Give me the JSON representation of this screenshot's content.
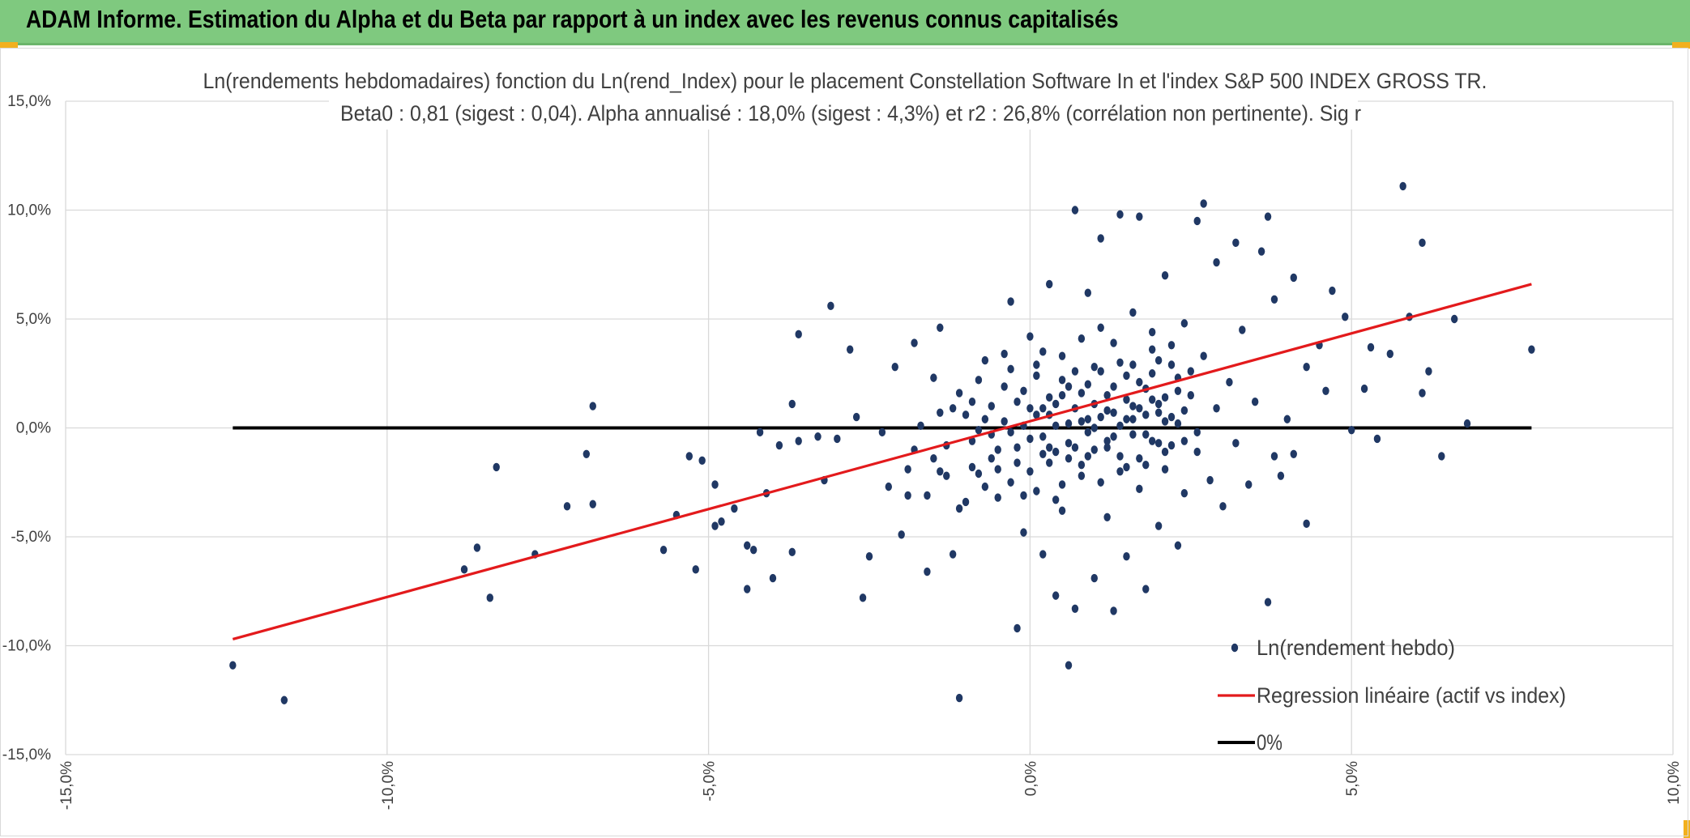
{
  "header": {
    "title": "ADAM Informe. Estimation du Alpha et du Beta par rapport à un index avec les revenus connus capitalisés"
  },
  "colors": {
    "header_bg": "#7fc97f",
    "scatter": "#203864",
    "regression": "#e31a1c",
    "zero_line": "#000000",
    "accent_corner": "#f2b01e"
  },
  "chart_data": {
    "type": "scatter",
    "title": "Ln(rendements hebdomadaires) fonction du Ln(rend_Index) pour le placement Constellation Software In et l'index S&P 500 INDEX GROSS TR.",
    "subtitle": "Beta0 : 0,81 (sigest : 0,04). Alpha annualisé : 18,0% (sigest : 4,3%) et r2 : 26,8% (corrélation non pertinente). Sig r",
    "xlim": [
      -15,
      10
    ],
    "ylim": [
      -15,
      15
    ],
    "x_ticks": [
      "-15,0%",
      "-10,0%",
      "-5,0%",
      "0,0%",
      "5,0%",
      "10,0%"
    ],
    "y_ticks": [
      "15,0%",
      "10,0%",
      "5,0%",
      "0,0%",
      "-5,0%",
      "-10,0%",
      "-15,0%"
    ],
    "x_unit": "%",
    "y_unit": "%",
    "grid": true,
    "legend_position": "bottom-right",
    "series": [
      {
        "name": "Ln(rendement hebdo)",
        "kind": "scatter",
        "points": [
          [
            -12.4,
            -10.9
          ],
          [
            -11.6,
            -12.5
          ],
          [
            -8.8,
            -6.5
          ],
          [
            -8.6,
            -5.5
          ],
          [
            -8.4,
            -7.8
          ],
          [
            -8.3,
            -1.8
          ],
          [
            -7.7,
            -5.8
          ],
          [
            -7.2,
            -3.6
          ],
          [
            -6.9,
            -1.2
          ],
          [
            -6.8,
            1.0
          ],
          [
            -6.8,
            -3.5
          ],
          [
            -5.7,
            -5.6
          ],
          [
            -5.5,
            -4.0
          ],
          [
            -5.3,
            -1.3
          ],
          [
            -5.2,
            -6.5
          ],
          [
            -5.1,
            -1.5
          ],
          [
            -4.9,
            -2.6
          ],
          [
            -4.9,
            -4.5
          ],
          [
            -4.8,
            -4.3
          ],
          [
            -4.6,
            -3.7
          ],
          [
            -4.4,
            -7.4
          ],
          [
            -4.4,
            -5.4
          ],
          [
            -4.3,
            -5.6
          ],
          [
            -4.2,
            -0.2
          ],
          [
            -4.1,
            -3.0
          ],
          [
            -4.0,
            -6.9
          ],
          [
            -3.9,
            -0.8
          ],
          [
            -3.7,
            -5.7
          ],
          [
            -3.7,
            1.1
          ],
          [
            -3.6,
            4.3
          ],
          [
            -3.6,
            -0.6
          ],
          [
            -3.3,
            -0.4
          ],
          [
            -3.2,
            -2.4
          ],
          [
            -3.1,
            5.6
          ],
          [
            -3.0,
            -0.5
          ],
          [
            -2.8,
            3.6
          ],
          [
            -2.7,
            0.5
          ],
          [
            -2.6,
            -7.8
          ],
          [
            -2.5,
            -5.9
          ],
          [
            -2.3,
            -0.2
          ],
          [
            -2.1,
            2.8
          ],
          [
            -2.0,
            -4.9
          ],
          [
            -1.9,
            -3.1
          ],
          [
            -1.8,
            3.9
          ],
          [
            -1.8,
            -1.0
          ],
          [
            -1.6,
            -6.6
          ],
          [
            -1.5,
            2.3
          ],
          [
            -1.4,
            -2.0
          ],
          [
            -1.4,
            4.6
          ],
          [
            -1.3,
            -0.8
          ],
          [
            -1.2,
            -5.8
          ],
          [
            -1.1,
            -3.7
          ],
          [
            -1.1,
            -12.4
          ],
          [
            -1.0,
            0.6
          ],
          [
            -0.9,
            -1.8
          ],
          [
            -0.8,
            -0.1
          ],
          [
            -0.7,
            3.1
          ],
          [
            -0.6,
            -1.4
          ],
          [
            -0.5,
            -3.2
          ],
          [
            -0.4,
            0.3
          ],
          [
            -0.3,
            5.8
          ],
          [
            -0.3,
            -2.5
          ],
          [
            -0.2,
            -9.2
          ],
          [
            -0.2,
            -0.9
          ],
          [
            -0.1,
            1.7
          ],
          [
            -0.1,
            -4.8
          ],
          [
            0.0,
            4.2
          ],
          [
            0.0,
            -0.5
          ],
          [
            0.1,
            -2.9
          ],
          [
            0.1,
            2.4
          ],
          [
            0.2,
            -5.8
          ],
          [
            0.2,
            0.9
          ],
          [
            0.3,
            -1.6
          ],
          [
            0.3,
            6.6
          ],
          [
            0.4,
            -7.7
          ],
          [
            0.4,
            0.1
          ],
          [
            0.5,
            -3.8
          ],
          [
            0.5,
            3.3
          ],
          [
            0.6,
            -0.7
          ],
          [
            0.6,
            -10.9
          ],
          [
            0.6,
            1.9
          ],
          [
            0.7,
            -8.3
          ],
          [
            0.7,
            10.0
          ],
          [
            0.8,
            -2.2
          ],
          [
            0.8,
            4.1
          ],
          [
            0.9,
            0.4
          ],
          [
            0.9,
            6.2
          ],
          [
            1.0,
            -6.9
          ],
          [
            1.0,
            -1.0
          ],
          [
            1.1,
            2.6
          ],
          [
            1.1,
            8.7
          ],
          [
            1.2,
            -4.1
          ],
          [
            1.2,
            0.8
          ],
          [
            1.3,
            -8.4
          ],
          [
            1.3,
            3.9
          ],
          [
            1.4,
            -1.3
          ],
          [
            1.4,
            9.8
          ],
          [
            1.5,
            1.3
          ],
          [
            1.5,
            -5.9
          ],
          [
            1.6,
            -0.3
          ],
          [
            1.6,
            5.3
          ],
          [
            1.7,
            -2.8
          ],
          [
            1.7,
            9.7
          ],
          [
            1.8,
            -7.4
          ],
          [
            1.8,
            1.8
          ],
          [
            1.9,
            -0.6
          ],
          [
            1.9,
            3.6
          ],
          [
            2.0,
            -4.5
          ],
          [
            2.0,
            0.7
          ],
          [
            2.1,
            7.0
          ],
          [
            2.1,
            -1.9
          ],
          [
            2.2,
            2.9
          ],
          [
            2.3,
            -5.4
          ],
          [
            2.3,
            0.2
          ],
          [
            2.4,
            4.8
          ],
          [
            2.4,
            -3.0
          ],
          [
            2.5,
            1.5
          ],
          [
            2.6,
            9.5
          ],
          [
            2.6,
            -1.1
          ],
          [
            2.7,
            10.3
          ],
          [
            2.7,
            3.3
          ],
          [
            2.8,
            -2.4
          ],
          [
            2.9,
            0.9
          ],
          [
            2.9,
            7.6
          ],
          [
            3.0,
            -3.6
          ],
          [
            3.1,
            2.1
          ],
          [
            3.2,
            8.5
          ],
          [
            3.2,
            -0.7
          ],
          [
            3.3,
            4.5
          ],
          [
            3.4,
            -2.6
          ],
          [
            3.5,
            1.2
          ],
          [
            3.6,
            8.1
          ],
          [
            3.7,
            9.7
          ],
          [
            3.7,
            -8.0
          ],
          [
            3.8,
            -1.3
          ],
          [
            3.8,
            5.9
          ],
          [
            3.9,
            -2.2
          ],
          [
            4.0,
            0.4
          ],
          [
            4.1,
            6.9
          ],
          [
            4.1,
            -1.2
          ],
          [
            4.3,
            2.8
          ],
          [
            4.3,
            -4.4
          ],
          [
            4.5,
            3.8
          ],
          [
            4.6,
            1.7
          ],
          [
            4.7,
            6.3
          ],
          [
            4.9,
            5.1
          ],
          [
            5.0,
            -0.1
          ],
          [
            5.2,
            1.8
          ],
          [
            5.3,
            3.7
          ],
          [
            5.4,
            -0.5
          ],
          [
            5.6,
            3.4
          ],
          [
            5.8,
            11.1
          ],
          [
            5.9,
            5.1
          ],
          [
            6.1,
            8.5
          ],
          [
            6.1,
            1.6
          ],
          [
            6.2,
            2.6
          ],
          [
            6.4,
            -1.3
          ],
          [
            6.6,
            5.0
          ],
          [
            6.8,
            0.2
          ],
          [
            7.8,
            3.6
          ],
          [
            -0.9,
            1.2
          ],
          [
            -0.6,
            -0.3
          ],
          [
            -0.4,
            1.9
          ],
          [
            -0.2,
            -1.6
          ],
          [
            0.1,
            0.6
          ],
          [
            0.2,
            -0.4
          ],
          [
            0.3,
            1.4
          ],
          [
            0.4,
            -1.1
          ],
          [
            0.5,
            2.2
          ],
          [
            0.6,
            0.2
          ],
          [
            0.7,
            -0.9
          ],
          [
            0.8,
            1.6
          ],
          [
            0.9,
            -0.2
          ],
          [
            1.0,
            2.8
          ],
          [
            1.1,
            0.5
          ],
          [
            1.2,
            -0.6
          ],
          [
            1.3,
            1.9
          ],
          [
            1.4,
            0.1
          ],
          [
            1.5,
            2.4
          ],
          [
            1.6,
            1.0
          ],
          [
            1.7,
            -1.4
          ],
          [
            1.8,
            0.6
          ],
          [
            1.9,
            1.3
          ],
          [
            2.0,
            3.1
          ],
          [
            2.1,
            0.3
          ],
          [
            2.2,
            -0.8
          ],
          [
            2.3,
            1.7
          ],
          [
            2.4,
            0.8
          ],
          [
            2.5,
            2.6
          ],
          [
            2.6,
            -0.2
          ],
          [
            -1.5,
            -1.4
          ],
          [
            -1.2,
            0.9
          ],
          [
            -0.8,
            -2.1
          ],
          [
            -0.7,
            0.4
          ],
          [
            -0.5,
            -1.0
          ],
          [
            -0.3,
            2.7
          ],
          [
            -0.1,
            0.1
          ],
          [
            0.0,
            -2.0
          ],
          [
            0.2,
            3.5
          ],
          [
            0.3,
            -0.9
          ],
          [
            0.4,
            1.1
          ],
          [
            0.5,
            -2.6
          ],
          [
            0.7,
            0.9
          ],
          [
            0.8,
            -1.7
          ],
          [
            0.9,
            2.0
          ],
          [
            1.0,
            0.0
          ],
          [
            1.1,
            -2.5
          ],
          [
            1.2,
            1.5
          ],
          [
            1.3,
            -0.4
          ],
          [
            1.4,
            3.0
          ],
          [
            1.5,
            -1.8
          ],
          [
            1.6,
            0.4
          ],
          [
            1.7,
            2.1
          ],
          [
            1.8,
            -0.3
          ],
          [
            1.9,
            4.4
          ],
          [
            2.0,
            1.1
          ],
          [
            2.1,
            -1.1
          ],
          [
            2.2,
            0.5
          ],
          [
            2.3,
            2.3
          ],
          [
            2.4,
            -0.6
          ],
          [
            -2.2,
            -2.7
          ],
          [
            -1.9,
            -1.9
          ],
          [
            -1.7,
            0.1
          ],
          [
            -1.6,
            -3.1
          ],
          [
            -1.4,
            0.7
          ],
          [
            -1.3,
            -2.2
          ],
          [
            -1.1,
            1.6
          ],
          [
            -1.0,
            -3.4
          ],
          [
            -0.9,
            -0.6
          ],
          [
            -0.8,
            2.2
          ],
          [
            -0.7,
            -2.7
          ],
          [
            -0.6,
            1.0
          ],
          [
            -0.5,
            -1.9
          ],
          [
            -0.4,
            3.4
          ],
          [
            -0.3,
            -0.2
          ],
          [
            -0.2,
            1.2
          ],
          [
            -0.1,
            -3.1
          ],
          [
            0.0,
            0.9
          ],
          [
            0.1,
            2.9
          ],
          [
            0.2,
            -1.2
          ],
          [
            0.3,
            0.6
          ],
          [
            0.4,
            -3.3
          ],
          [
            0.5,
            1.5
          ],
          [
            0.6,
            -1.4
          ],
          [
            0.7,
            2.6
          ],
          [
            0.8,
            0.3
          ],
          [
            0.9,
            -1.3
          ],
          [
            1.0,
            1.1
          ],
          [
            1.1,
            4.6
          ],
          [
            1.2,
            -0.9
          ],
          [
            1.3,
            0.7
          ],
          [
            1.4,
            -2.0
          ],
          [
            1.5,
            0.4
          ],
          [
            1.6,
            2.9
          ],
          [
            1.7,
            0.9
          ],
          [
            1.8,
            -1.7
          ],
          [
            1.9,
            2.5
          ],
          [
            2.0,
            -0.7
          ],
          [
            2.1,
            1.4
          ],
          [
            2.2,
            3.8
          ]
        ]
      },
      {
        "name": "Regression linéaire (actif vs index)",
        "kind": "line",
        "points": [
          [
            -12.4,
            -9.7
          ],
          [
            7.8,
            6.6
          ]
        ]
      },
      {
        "name": "0%",
        "kind": "line",
        "points": [
          [
            -12.4,
            0.0
          ],
          [
            7.8,
            0.0
          ]
        ]
      }
    ]
  }
}
